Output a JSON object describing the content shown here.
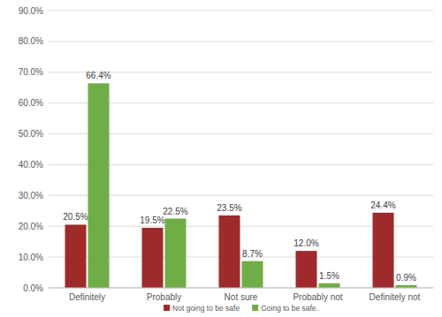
{
  "chart_data": {
    "type": "bar",
    "categories": [
      "Definitely",
      "Probably",
      "Not sure",
      "Probably not",
      "Definitely not"
    ],
    "series": [
      {
        "name": "Not going to be safe",
        "color": "#9e2a2b",
        "values": [
          20.5,
          19.5,
          23.5,
          12.0,
          24.4
        ],
        "value_labels": [
          "20.5%",
          "19.5%",
          "23.5%",
          "12.0%",
          "24.4%"
        ]
      },
      {
        "name": "Going to be safe.",
        "color": "#70ad47",
        "values": [
          66.4,
          22.5,
          8.7,
          1.5,
          0.9
        ],
        "value_labels": [
          "66.4%",
          "22.5%",
          "8.7%",
          "1.5%",
          "0.9%"
        ]
      }
    ],
    "ylim": [
      0,
      90
    ],
    "yticks": [
      {
        "value": 0,
        "label": "0.0%"
      },
      {
        "value": 10,
        "label": "10.0%"
      },
      {
        "value": 20,
        "label": "20.0%"
      },
      {
        "value": 30,
        "label": "30.0%"
      },
      {
        "value": 40,
        "label": "40.0%"
      },
      {
        "value": 50,
        "label": "50.0%"
      },
      {
        "value": 60,
        "label": "60.0%"
      },
      {
        "value": 70,
        "label": "70.0%"
      },
      {
        "value": 80,
        "label": "80.0%"
      },
      {
        "value": 90,
        "label": "90.0%"
      }
    ],
    "grid": true,
    "legend": "bottom",
    "data_labels": true
  }
}
